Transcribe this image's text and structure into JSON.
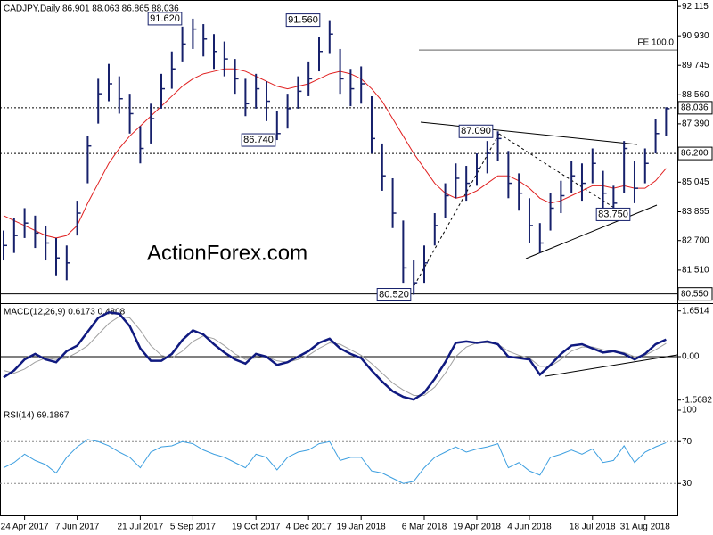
{
  "chart_data": [
    {
      "type": "hlc",
      "title": "CADJPY,Daily  86.901 88.063 86.865 88.036",
      "watermark": "ActionForex.com",
      "color": "#16206b",
      "xlim": [
        -0.34,
        64.07
      ],
      "ylim": [
        80.18,
        92.37
      ],
      "yticks": [
        92.115,
        {
          "value": 90.93,
          "label": "90.930"
        },
        89.745,
        {
          "value": 88.56,
          "label": "88.560"
        },
        {
          "value": 87.39,
          "label": "87.390"
        },
        85.045,
        83.855,
        {
          "value": 82.7,
          "label": "82.700"
        },
        {
          "value": 81.51,
          "label": "81.510"
        }
      ],
      "high": [
        83.1,
        83.6,
        84.0,
        83.7,
        83.3,
        82.8,
        82.5,
        84.3,
        86.9,
        89.2,
        89.8,
        89.3,
        88.6,
        87.3,
        88.2,
        89.4,
        90.3,
        91.3,
        91.62,
        91.4,
        91.0,
        90.7,
        90.0,
        89.2,
        89.4,
        89.1,
        87.9,
        88.6,
        89.3,
        89.9,
        90.9,
        91.56,
        90.4,
        89.6,
        89.7,
        88.5,
        86.6,
        85.2,
        83.5,
        81.9,
        82.5,
        83.8,
        85.0,
        85.8,
        85.7,
        86.2,
        86.7,
        87.09,
        86.3,
        85.4,
        84.4,
        83.4,
        84.6,
        85.1,
        85.9,
        85.8,
        86.4,
        85.5,
        84.9,
        86.7,
        85.9,
        86.4,
        87.6,
        88.06
      ],
      "low": [
        81.9,
        82.2,
        82.8,
        82.4,
        81.9,
        81.3,
        81.1,
        82.9,
        85.0,
        87.4,
        88.3,
        87.8,
        87.0,
        85.8,
        86.6,
        88.0,
        88.8,
        89.9,
        90.4,
        90.1,
        89.6,
        89.3,
        88.6,
        87.7,
        88.0,
        87.5,
        86.74,
        87.2,
        88.0,
        88.5,
        89.5,
        90.2,
        88.6,
        88.1,
        88.2,
        86.2,
        84.7,
        83.2,
        81.0,
        80.52,
        81.0,
        82.5,
        83.6,
        84.4,
        84.3,
        84.9,
        85.4,
        85.9,
        84.4,
        83.9,
        82.6,
        82.2,
        83.1,
        83.8,
        84.6,
        84.3,
        85.0,
        84.0,
        83.75,
        84.6,
        84.2,
        85.0,
        86.2,
        86.9
      ],
      "close": [
        82.5,
        82.9,
        83.4,
        83.0,
        82.6,
        82.0,
        81.8,
        83.8,
        86.5,
        88.6,
        89.0,
        88.4,
        87.8,
        86.4,
        87.6,
        88.8,
        89.6,
        90.6,
        91.2,
        90.8,
        90.3,
        90.0,
        89.2,
        88.2,
        88.8,
        88.3,
        87.0,
        88.0,
        88.7,
        89.2,
        90.3,
        91.0,
        89.2,
        88.8,
        89.0,
        86.8,
        85.3,
        83.8,
        81.6,
        81.0,
        81.8,
        83.3,
        84.5,
        85.2,
        85.0,
        85.6,
        86.2,
        86.8,
        85.0,
        84.6,
        83.3,
        82.6,
        84.0,
        84.5,
        85.3,
        85.0,
        85.8,
        84.6,
        84.2,
        86.4,
        84.8,
        85.8,
        87.0,
        88.0
      ],
      "overlays": [
        {
          "color": "#e02020",
          "values": [
            83.7,
            83.5,
            83.3,
            83.1,
            82.9,
            82.8,
            82.9,
            83.3,
            84.2,
            85.0,
            85.8,
            86.4,
            86.9,
            87.3,
            87.7,
            88.1,
            88.5,
            88.9,
            89.2,
            89.4,
            89.5,
            89.6,
            89.6,
            89.5,
            89.3,
            89.1,
            88.9,
            88.8,
            88.9,
            89.0,
            89.2,
            89.4,
            89.5,
            89.4,
            89.2,
            88.8,
            88.3,
            87.6,
            86.9,
            86.2,
            85.6,
            85.0,
            84.6,
            84.4,
            84.5,
            84.7,
            85.0,
            85.3,
            85.3,
            85.1,
            84.8,
            84.4,
            84.2,
            84.3,
            84.5,
            84.7,
            84.9,
            84.9,
            84.8,
            84.9,
            84.8,
            84.8,
            85.1,
            85.6
          ]
        }
      ],
      "annotations": [
        {
          "value": 91.62,
          "label": "91.620"
        },
        {
          "value": 91.56,
          "label": "91.560"
        },
        {
          "value": 86.74,
          "label": "86.740"
        },
        {
          "value": 87.09,
          "label": "87.090"
        },
        {
          "value": 83.75,
          "label": "83.750"
        },
        {
          "value": 80.52,
          "label": "80.520"
        }
      ],
      "price_lines": [
        88.036,
        {
          "value": 86.2,
          "label": "86.200"
        },
        {
          "value": 80.55,
          "label": "80.550"
        }
      ],
      "fe_line": {
        "value": 90.36,
        "label": "FE 100.0"
      }
    },
    {
      "type": "macd",
      "title": "MACD(12,26,9) 0.6173 0.4808",
      "xlim": [
        -0.34,
        64.07
      ],
      "ylim": [
        -1.803,
        1.867
      ],
      "yticks": [
        1.6514,
        {
          "value": 0,
          "label": "0.00"
        },
        -1.5682
      ],
      "lines": [
        {
          "color": "#101a80",
          "values": [
            -0.75,
            -0.5,
            -0.1,
            0.1,
            -0.1,
            -0.2,
            0.2,
            0.4,
            0.9,
            1.4,
            1.6,
            1.55,
            1.1,
            0.3,
            -0.15,
            -0.15,
            0.1,
            0.6,
            0.95,
            0.8,
            0.45,
            0.15,
            -0.1,
            -0.25,
            0.1,
            0.0,
            -0.3,
            -0.2,
            0.0,
            0.2,
            0.5,
            0.65,
            0.3,
            0.1,
            -0.05,
            -0.5,
            -0.9,
            -1.25,
            -1.45,
            -1.55,
            -1.3,
            -0.8,
            -0.2,
            0.5,
            0.55,
            0.5,
            0.55,
            0.45,
            0.0,
            -0.05,
            -0.1,
            -0.65,
            -0.3,
            0.1,
            0.4,
            0.45,
            0.3,
            0.15,
            0.2,
            0.1,
            -0.1,
            0.1,
            0.45,
            0.62
          ]
        },
        {
          "color": "#a0a0a0",
          "values": [
            -0.5,
            -0.6,
            -0.45,
            -0.2,
            -0.05,
            -0.1,
            -0.05,
            0.15,
            0.4,
            0.8,
            1.2,
            1.45,
            1.4,
            0.95,
            0.4,
            0.05,
            -0.05,
            0.2,
            0.55,
            0.75,
            0.65,
            0.4,
            0.1,
            -0.1,
            -0.05,
            0.0,
            -0.15,
            -0.2,
            -0.1,
            0.05,
            0.3,
            0.5,
            0.45,
            0.25,
            0.05,
            -0.25,
            -0.6,
            -0.95,
            -1.2,
            -1.4,
            -1.4,
            -1.1,
            -0.6,
            0.0,
            0.35,
            0.5,
            0.5,
            0.45,
            0.2,
            0.05,
            -0.05,
            -0.35,
            -0.35,
            -0.1,
            0.2,
            0.35,
            0.35,
            0.25,
            0.2,
            0.15,
            0.0,
            0.05,
            0.25,
            0.48
          ]
        }
      ]
    },
    {
      "type": "rsi",
      "title": "RSI(14) 69.1867",
      "xlim": [
        -0.34,
        64.07
      ],
      "ylim": [
        0,
        100
      ],
      "yticks": [
        100,
        70,
        30
      ],
      "color": "#3d9fe0",
      "values": [
        45,
        50,
        58,
        52,
        48,
        40,
        55,
        65,
        72,
        70,
        66,
        60,
        55,
        45,
        60,
        65,
        66,
        70,
        68,
        62,
        58,
        55,
        50,
        45,
        58,
        55,
        43,
        55,
        60,
        62,
        68,
        70,
        52,
        55,
        55,
        42,
        40,
        35,
        30,
        32,
        45,
        55,
        60,
        65,
        60,
        63,
        65,
        68,
        45,
        50,
        42,
        38,
        55,
        58,
        62,
        58,
        63,
        50,
        52,
        66,
        50,
        60,
        65,
        69
      ],
      "xticks": [
        {
          "value": 2,
          "label": "24 Apr 2017"
        },
        {
          "value": 7,
          "label": "7 Jun 2017"
        },
        {
          "value": 13,
          "label": "21 Jul 2017"
        },
        {
          "value": 18,
          "label": "5 Sep 2017"
        },
        {
          "value": 24,
          "label": "19 Oct 2017"
        },
        {
          "value": 29,
          "label": "4 Dec 2017"
        },
        {
          "value": 34,
          "label": "19 Jan 2018"
        },
        {
          "value": 40,
          "label": "6 Mar 2018"
        },
        {
          "value": 45,
          "label": "19 Apr 2018"
        },
        {
          "value": 50,
          "label": "4 Jun 2018"
        },
        {
          "value": 56,
          "label": "18 Jul 2018"
        },
        {
          "value": 61,
          "label": "31 Aug 2018"
        }
      ]
    }
  ]
}
